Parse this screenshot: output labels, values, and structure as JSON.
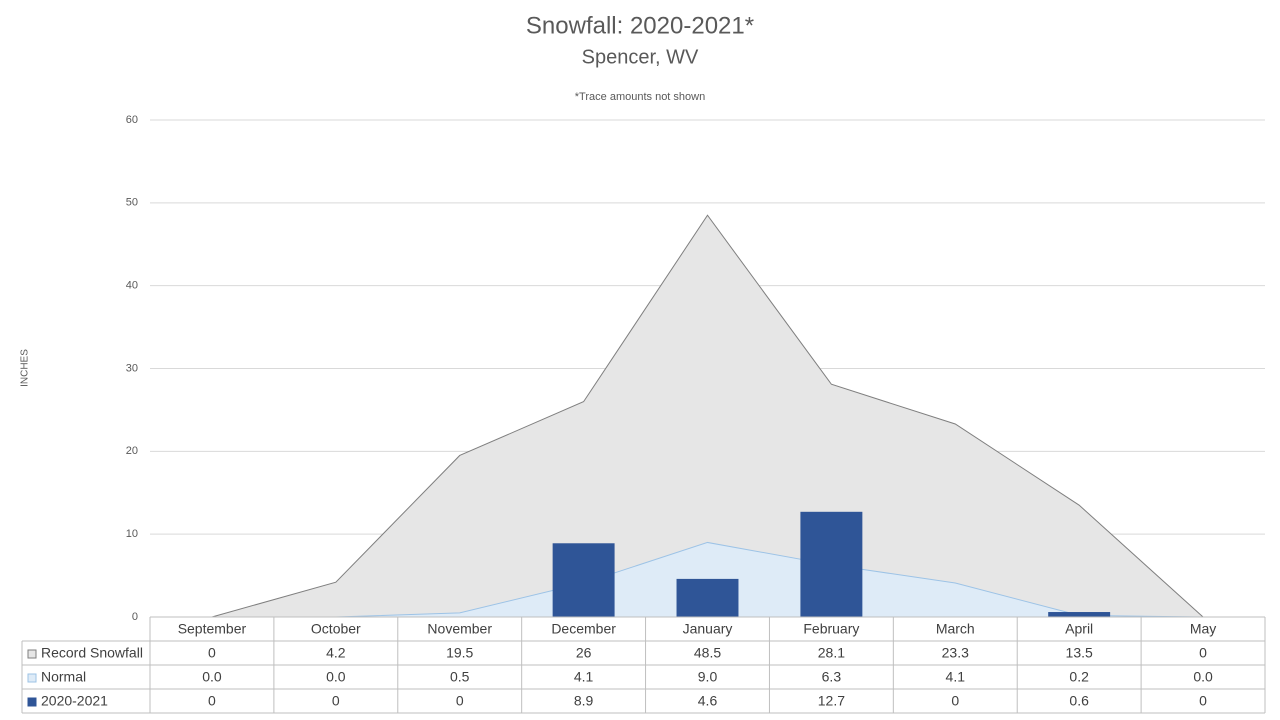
{
  "chart_data": {
    "type": "combo",
    "title": "Snowfall: 2020-2021*",
    "subtitle": "Spencer, WV",
    "annotation": "*Trace amounts not shown",
    "y_label": "INCHES",
    "categories": [
      "September",
      "October",
      "November",
      "December",
      "January",
      "February",
      "March",
      "April",
      "May"
    ],
    "series": [
      {
        "name": "Record Snowfall",
        "type": "area",
        "color": "#e6e6e6",
        "line_color": "#7f7f7f",
        "values": [
          0,
          4.2,
          19.5,
          26,
          48.5,
          28.1,
          23.3,
          13.5,
          0
        ]
      },
      {
        "name": "Normal",
        "type": "area",
        "color": "#deebf7",
        "line_color": "#9dc3e6",
        "values": [
          0,
          0,
          0.5,
          4.1,
          9,
          6.3,
          4.1,
          0.2,
          0
        ],
        "value_labels": [
          "0.0",
          "0.0",
          "0.5",
          "4.1",
          "9.0",
          "6.3",
          "4.1",
          "0.2",
          "0.0"
        ]
      },
      {
        "name": "2020-2021",
        "type": "bar",
        "color": "#2f5597",
        "values": [
          0,
          0,
          0,
          8.9,
          4.6,
          12.7,
          0,
          0.6,
          0
        ]
      }
    ],
    "ylim": [
      0,
      60
    ],
    "yticks": [
      0,
      10,
      20,
      30,
      40,
      50,
      60
    ],
    "grid": true,
    "data_table": true
  }
}
